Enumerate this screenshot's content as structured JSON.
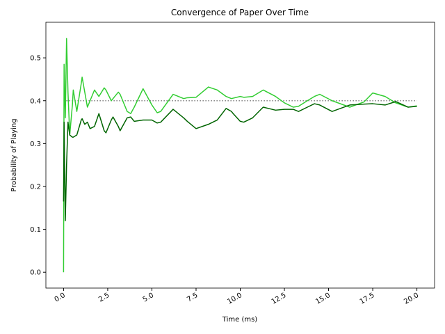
{
  "chart_data": {
    "type": "line",
    "title": "Convergence of Paper Over Time",
    "x_label": "Time (ms)",
    "y_label": "Probability of Playing",
    "x": [
      0,
      0.03,
      0.1,
      0.17,
      0.25,
      0.35,
      0.5,
      0.55,
      0.75,
      1.0,
      1.05,
      1.2,
      1.35,
      1.5,
      1.75,
      2.0,
      2.3,
      2.4,
      2.7,
      2.8,
      3.1,
      3.2,
      3.6,
      3.8,
      4.0,
      4.5,
      5.0,
      5.3,
      5.5,
      6.2,
      6.8,
      7.0,
      7.5,
      8.2,
      8.7,
      9.2,
      9.5,
      9.6,
      10.0,
      10.2,
      10.7,
      11.3,
      12.0,
      12.5,
      13.0,
      13.3,
      13.8,
      14.2,
      14.5,
      15.2,
      16.2,
      17.0,
      17.5,
      18.2,
      18.8,
      19.5,
      20.0
    ],
    "series": [
      {
        "color": "#32cd32",
        "values": [
          0,
          0.485,
          0.36,
          0.545,
          0.42,
          0.32,
          0.39,
          0.425,
          0.375,
          0.44,
          0.455,
          0.42,
          0.385,
          0.4,
          0.425,
          0.41,
          0.43,
          0.425,
          0.4,
          0.405,
          0.42,
          0.415,
          0.375,
          0.37,
          0.385,
          0.428,
          0.39,
          0.372,
          0.375,
          0.415,
          0.405,
          0.407,
          0.408,
          0.432,
          0.425,
          0.41,
          0.405,
          0.406,
          0.41,
          0.408,
          0.41,
          0.425,
          0.41,
          0.395,
          0.385,
          0.387,
          0.4,
          0.41,
          0.415,
          0.4,
          0.385,
          0.397,
          0.418,
          0.41,
          0.395,
          0.385,
          0.388
        ]
      },
      {
        "color": "#006400",
        "values": [
          0.165,
          0.35,
          0.12,
          0.25,
          0.35,
          0.32,
          0.315,
          0.315,
          0.32,
          0.355,
          0.358,
          0.345,
          0.35,
          0.335,
          0.34,
          0.37,
          0.33,
          0.325,
          0.355,
          0.362,
          0.34,
          0.33,
          0.36,
          0.362,
          0.352,
          0.355,
          0.355,
          0.348,
          0.35,
          0.38,
          0.36,
          0.352,
          0.335,
          0.345,
          0.355,
          0.382,
          0.375,
          0.37,
          0.352,
          0.35,
          0.36,
          0.385,
          0.378,
          0.38,
          0.38,
          0.375,
          0.385,
          0.393,
          0.39,
          0.375,
          0.39,
          0.392,
          0.393,
          0.39,
          0.398,
          0.385,
          0.387
        ]
      }
    ],
    "reference": 0.4,
    "reference_color": "#808080",
    "xlim": [
      -1,
      21
    ],
    "ylim": [
      -0.037,
      0.583
    ],
    "xticks": [
      {
        "value": 0,
        "label": "0.0"
      },
      2.5,
      {
        "value": 5,
        "label": "5.0"
      },
      7.5,
      {
        "value": 10,
        "label": "10.0"
      },
      12.5,
      {
        "value": 15,
        "label": "15.0"
      },
      17.5,
      {
        "value": 20,
        "label": "20.0"
      }
    ],
    "yticks": [
      {
        "value": 0,
        "label": "0.0"
      },
      0.1,
      0.2,
      0.3,
      0.4,
      0.5
    ]
  }
}
